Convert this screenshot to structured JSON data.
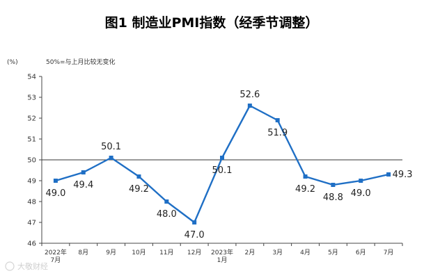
{
  "chart_data": {
    "type": "line",
    "title": "图1 制造业PMI指数（经季节调整）",
    "ylabel": "(%)",
    "annotation": "50%=与上月比较无变化",
    "categories": [
      [
        "2022年",
        "7月"
      ],
      [
        "8月"
      ],
      [
        "9月"
      ],
      [
        "10月"
      ],
      [
        "11月"
      ],
      [
        "12月"
      ],
      [
        "2023年",
        "1月"
      ],
      [
        "2月"
      ],
      [
        "3月"
      ],
      [
        "4月"
      ],
      [
        "5月"
      ],
      [
        "6月"
      ],
      [
        "7月"
      ]
    ],
    "series": [
      {
        "values": [
          49.0,
          49.4,
          50.1,
          49.2,
          48.0,
          47.0,
          50.1,
          52.6,
          51.9,
          49.2,
          48.8,
          49.0,
          49.3
        ]
      }
    ],
    "data_labels": [
      "49.0",
      "49.4",
      "50.1",
      "49.2",
      "48.0",
      "47.0",
      "50.1",
      "52.6",
      "51.9",
      "49.2",
      "48.8",
      "49.0",
      "49.3"
    ],
    "ylim": [
      46,
      54
    ],
    "yticks": [
      46,
      47,
      48,
      49,
      50,
      51,
      52,
      53,
      54
    ],
    "reference_line": 50,
    "grid": false,
    "colors": {
      "line": "#1f6fc5",
      "axis": "#444444",
      "reference": "#333333"
    }
  },
  "watermark": "大敬财经"
}
